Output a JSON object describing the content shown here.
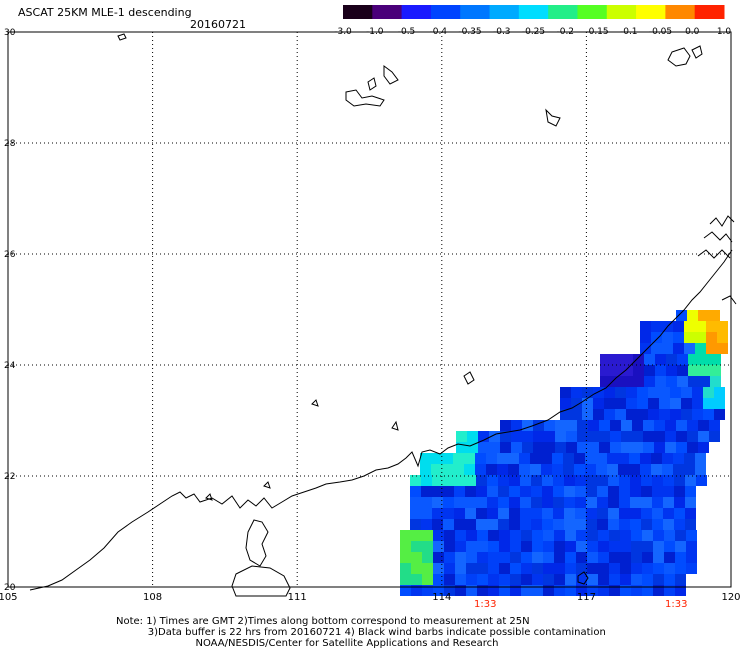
{
  "header": {
    "title": "ASCAT 25KM MLE-1 descending",
    "date": "20160721"
  },
  "colorbar": {
    "labels": [
      "-3.0",
      "-1.0",
      "-0.5",
      "-0.4",
      "-0.35",
      "-0.3",
      "-0.25",
      "-0.2",
      "-0.15",
      "-0.1",
      "-0.05",
      "0.0",
      "1.0"
    ],
    "colors": [
      "#1a001a",
      "#4a007a",
      "#1a1aff",
      "#0044ff",
      "#0077ff",
      "#00aaff",
      "#00ddff",
      "#22ee88",
      "#55ff22",
      "#ccff00",
      "#ffff00",
      "#ff8800",
      "#ff2200"
    ]
  },
  "map": {
    "lat_ticks": [
      "30",
      "28",
      "26",
      "24",
      "22",
      "20"
    ],
    "lon_ticks": [
      "105",
      "108",
      "111",
      "114",
      "117",
      "120"
    ],
    "time_labels": [
      "1:33",
      "1:33"
    ],
    "time_color": "#ff2200",
    "lat_range": [
      20,
      30
    ],
    "lon_range": [
      105,
      120
    ]
  },
  "notes": {
    "line1": "Note: 1) Times are GMT 2)Times along bottom correspond to measurement at 25N",
    "line2": "3)Data buffer is 22 hrs from 20160721 4) Black wind barbs indicate possible contamination",
    "line3": "NOAA/NESDIS/Center for Satellite Applications and Research"
  }
}
